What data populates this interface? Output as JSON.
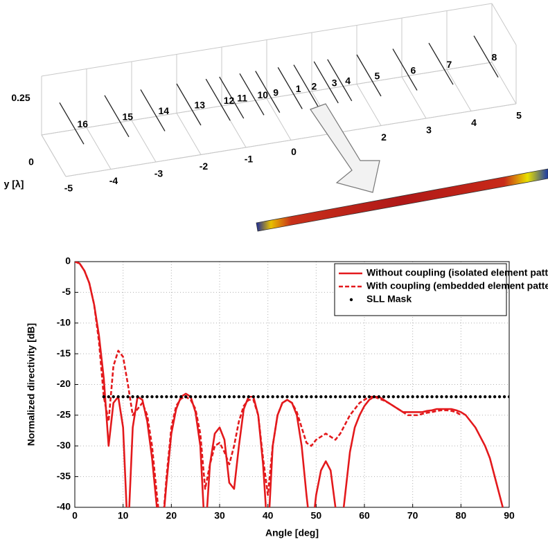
{
  "chart_data": [
    {
      "type": "array-3d",
      "xlim": [
        -5,
        5
      ],
      "xticks": [
        -5,
        -4,
        -3,
        -2,
        -1,
        0,
        1,
        2,
        3,
        4,
        5
      ],
      "zlim": [
        0,
        0.25
      ],
      "zticks": [
        0,
        0.25
      ],
      "zlabel": "y [λ]",
      "elements": {
        "labels": [
          1,
          2,
          3,
          4,
          5,
          6,
          7,
          8,
          9,
          10,
          11,
          12,
          13,
          14,
          15,
          16
        ],
        "x": [
          0.25,
          0.6,
          1.05,
          1.35,
          2.0,
          2.8,
          3.6,
          4.6,
          -0.25,
          -0.6,
          -1.05,
          -1.35,
          -2.0,
          -2.8,
          -3.6,
          -4.6
        ]
      }
    },
    {
      "type": "line",
      "xlabel": "Angle [deg]",
      "ylabel": "Normalized directivity [dB]",
      "xlim": [
        0,
        90
      ],
      "xticks": [
        0,
        10,
        20,
        30,
        40,
        50,
        60,
        70,
        80,
        90
      ],
      "ylim": [
        -40,
        0
      ],
      "yticks": [
        -40,
        -35,
        -30,
        -25,
        -20,
        -15,
        -10,
        -5,
        0
      ],
      "grid": true,
      "legend": "upper-right",
      "x": [
        0,
        1,
        2,
        3,
        4,
        5,
        6,
        7,
        8,
        9,
        10,
        11,
        12,
        13,
        14,
        15,
        16,
        17,
        18,
        19,
        20,
        21,
        22,
        23,
        24,
        25,
        26,
        27,
        28,
        29,
        30,
        31,
        32,
        33,
        34,
        35,
        36,
        37,
        38,
        39,
        40,
        41,
        42,
        43,
        44,
        45,
        46,
        47,
        48,
        49,
        50,
        51,
        52,
        53,
        54,
        55,
        56,
        57,
        58,
        59,
        60,
        61,
        62,
        63,
        64,
        65,
        66,
        67,
        68,
        69,
        70,
        71,
        72,
        73,
        74,
        75,
        76,
        77,
        78,
        79,
        80,
        81,
        82,
        83,
        84,
        85,
        86,
        87,
        88,
        89,
        90
      ],
      "series": [
        {
          "name": "Without coupling (isolated element patterns)",
          "color": "#e3191c",
          "style": "solid",
          "values": [
            0,
            -0.3,
            -1.5,
            -3.5,
            -7,
            -12,
            -19,
            -30,
            -23,
            -22,
            -27,
            -45,
            -27,
            -22,
            -22.5,
            -26,
            -32,
            -40,
            -45,
            -36,
            -28,
            -24,
            -22,
            -21.5,
            -22,
            -24.5,
            -30,
            -45,
            -33,
            -28,
            -27,
            -29,
            -36,
            -37,
            -30,
            -24,
            -22,
            -22,
            -25,
            -33,
            -45,
            -30,
            -25,
            -23,
            -22.5,
            -23,
            -25,
            -30,
            -38,
            -45,
            -38,
            -34,
            -32.5,
            -34,
            -40,
            -45,
            -38,
            -31,
            -27,
            -25,
            -23.5,
            -22.5,
            -22,
            -22,
            -22.5,
            -23,
            -23.5,
            -24,
            -24.5,
            -24.5,
            -24.5,
            -24.5,
            -24.5,
            -24.3,
            -24.2,
            -24,
            -24,
            -24,
            -24,
            -24.2,
            -24.5,
            -25,
            -26,
            -27,
            -28.5,
            -30,
            -32,
            -35,
            -38,
            -41,
            -46
          ]
        },
        {
          "name": "With coupling (embedded element patterns)",
          "color": "#e3191c",
          "style": "dashed",
          "values": [
            0,
            -0.3,
            -1.5,
            -3.5,
            -7,
            -13,
            -22,
            -26,
            -17,
            -14.5,
            -15.5,
            -20,
            -25,
            -24,
            -23,
            -25,
            -30,
            -38,
            -45,
            -35,
            -27,
            -23.5,
            -22.3,
            -22,
            -22.5,
            -24,
            -28,
            -37,
            -33,
            -30,
            -29.5,
            -31,
            -33,
            -30,
            -26,
            -23.5,
            -22.5,
            -22.5,
            -25,
            -32,
            -38,
            -30,
            -25,
            -23,
            -22.5,
            -23,
            -24.5,
            -27,
            -29.5,
            -30,
            -29,
            -28.5,
            -28,
            -28.5,
            -29,
            -28,
            -26.5,
            -25,
            -24,
            -23,
            -22.5,
            -22,
            -22,
            -22.3,
            -22.6,
            -23,
            -23.5,
            -24,
            -24.5,
            -25,
            -25,
            -25,
            -24.8,
            -24.6,
            -24.5,
            -24.3,
            -24.2,
            -24.2,
            -24.3,
            -24.5,
            -25,
            null,
            null,
            null,
            null,
            null,
            null,
            null,
            null,
            null,
            null
          ]
        },
        {
          "name": "SLL Mask",
          "color": "#000000",
          "style": "dots",
          "values": [
            null,
            null,
            null,
            null,
            null,
            null,
            -22,
            -22,
            -22,
            -22,
            -22,
            -22,
            -22,
            -22,
            -22,
            -22,
            -22,
            -22,
            -22,
            -22,
            -22,
            -22,
            -22,
            -22,
            -22,
            -22,
            -22,
            -22,
            -22,
            -22,
            -22,
            -22,
            -22,
            -22,
            -22,
            -22,
            -22,
            -22,
            -22,
            -22,
            -22,
            -22,
            -22,
            -22,
            -22,
            -22,
            -22,
            -22,
            -22,
            -22,
            -22,
            -22,
            -22,
            -22,
            -22,
            -22,
            -22,
            -22,
            -22,
            -22,
            -22,
            -22,
            -22,
            -22,
            -22,
            -22,
            -22,
            -22,
            -22,
            -22,
            -22,
            -22,
            -22,
            -22,
            -22,
            -22,
            -22,
            -22,
            -22,
            -22,
            -22,
            -22,
            -22,
            -22,
            -22,
            -22,
            -22,
            -22,
            -22,
            -22,
            -22
          ]
        }
      ]
    }
  ]
}
